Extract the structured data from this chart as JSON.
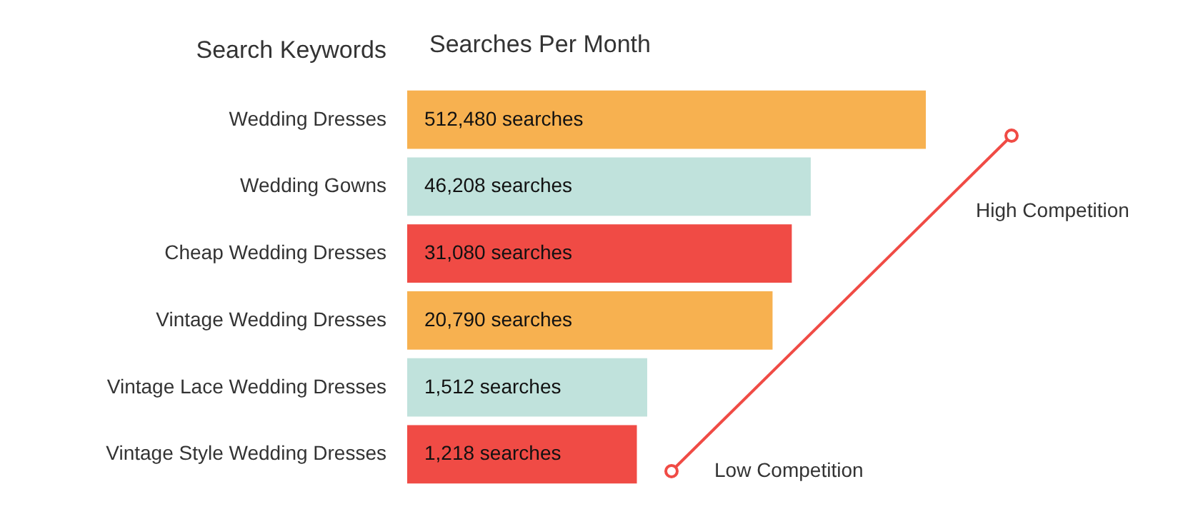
{
  "chart_data": {
    "type": "bar",
    "orientation": "horizontal",
    "xlabel": "Searches Per Month",
    "ylabel": "Search Keywords",
    "categories": [
      "Wedding Dresses",
      "Wedding Gowns",
      "Cheap Wedding Dresses",
      "Vintage Wedding Dresses",
      "Vintage Lace Wedding Dresses",
      "Vintage Style Wedding Dresses"
    ],
    "values": [
      512480,
      46208,
      31080,
      20790,
      1512,
      1218
    ],
    "value_labels": [
      "512,480 searches",
      "46,208 searches",
      "31,080 searches",
      "20,790 searches",
      "1,512 searches",
      "1,218 searches"
    ],
    "colors": [
      "#f7b150",
      "#c0e2dc",
      "#f04b45",
      "#f7b150",
      "#c0e2dc",
      "#f04b45"
    ],
    "log": "x",
    "xlim": [
      10,
      512480
    ],
    "tick_labels": "y",
    "annotations": [
      "High Competition",
      "Low Competition"
    ]
  }
}
